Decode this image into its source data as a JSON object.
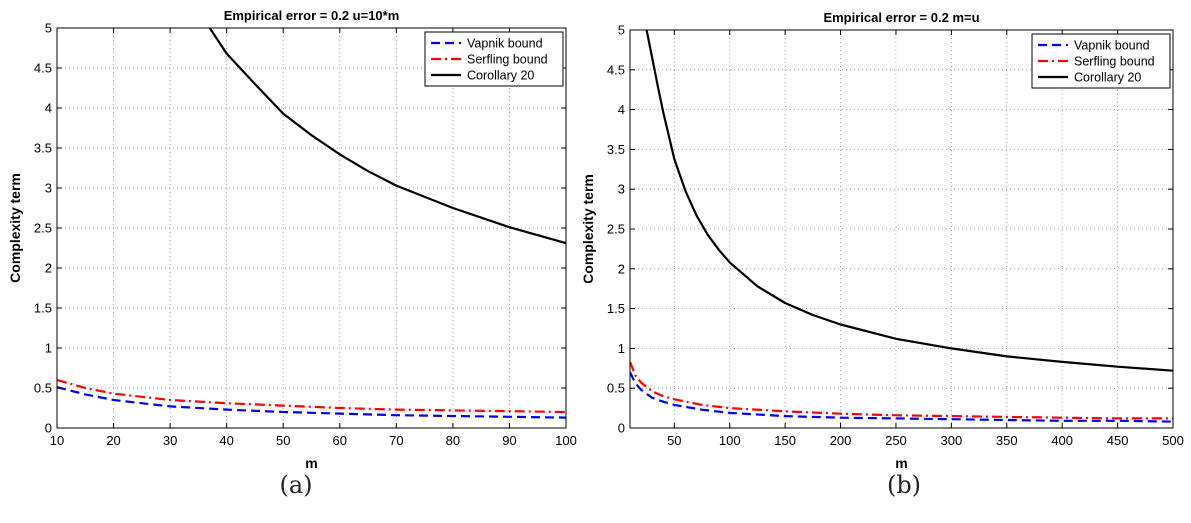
{
  "chart_data": [
    {
      "type": "line",
      "title": "Empirical error = 0.2   u=10*m",
      "xlabel": "m",
      "ylabel": "Complexity term",
      "caption": "(a)",
      "xlim": [
        10,
        100
      ],
      "ylim": [
        0,
        5
      ],
      "xticks": [
        10,
        20,
        30,
        40,
        50,
        60,
        70,
        80,
        90,
        100
      ],
      "xtick_labels": [
        "10",
        "20",
        "30",
        "40",
        "50",
        "60",
        "70",
        "80",
        "90",
        "100"
      ],
      "yticks": [
        0,
        0.5,
        1,
        1.5,
        2,
        2.5,
        3,
        3.5,
        4,
        4.5,
        5
      ],
      "ytick_labels": [
        "0",
        "0.5",
        "1",
        "1.5",
        "2",
        "2.5",
        "3",
        "3.5",
        "4",
        "4.5",
        "5"
      ],
      "grid": true,
      "legend_position": "top-right",
      "series": [
        {
          "name": "Vapnik bound",
          "color": "#0000ff",
          "dash": "dashed",
          "x": [
            10,
            15,
            20,
            25,
            30,
            40,
            50,
            60,
            70,
            80,
            90,
            100
          ],
          "y": [
            0.51,
            0.42,
            0.35,
            0.31,
            0.27,
            0.23,
            0.2,
            0.18,
            0.16,
            0.15,
            0.14,
            0.13
          ]
        },
        {
          "name": "Serfling bound",
          "color": "#ff0000",
          "dash": "dashdot",
          "x": [
            10,
            15,
            20,
            25,
            30,
            40,
            50,
            60,
            70,
            80,
            90,
            100
          ],
          "y": [
            0.6,
            0.5,
            0.43,
            0.39,
            0.35,
            0.31,
            0.28,
            0.25,
            0.23,
            0.22,
            0.21,
            0.2
          ]
        },
        {
          "name": "Corollary 20",
          "color": "#000000",
          "dash": "solid",
          "x": [
            36,
            37,
            40,
            45,
            50,
            55,
            60,
            65,
            70,
            80,
            90,
            100
          ],
          "y": [
            5.2,
            5.0,
            4.68,
            4.3,
            3.93,
            3.66,
            3.42,
            3.21,
            3.03,
            2.75,
            2.51,
            2.31
          ]
        }
      ]
    },
    {
      "type": "line",
      "title": "Empirical error = 0.2   m=u",
      "xlabel": "m",
      "ylabel": "Complexity term",
      "caption": "(b)",
      "xlim": [
        10,
        500
      ],
      "ylim": [
        0,
        5
      ],
      "xticks": [
        50,
        100,
        150,
        200,
        250,
        300,
        350,
        400,
        450,
        500
      ],
      "xtick_labels": [
        "50",
        "100",
        "150",
        "200",
        "250",
        "300",
        "350",
        "400",
        "450",
        "500"
      ],
      "yticks": [
        0,
        0.5,
        1,
        1.5,
        2,
        2.5,
        3,
        3.5,
        4,
        4.5,
        5
      ],
      "ytick_labels": [
        "0",
        "0.5",
        "1",
        "1.5",
        "2",
        "2.5",
        "3",
        "3.5",
        "4",
        "4.5",
        "5"
      ],
      "grid": true,
      "legend_position": "top-right",
      "series": [
        {
          "name": "Vapnik bound",
          "color": "#0000ff",
          "dash": "dashed",
          "x": [
            10,
            15,
            20,
            30,
            40,
            50,
            75,
            100,
            150,
            200,
            250,
            300,
            350,
            400,
            450,
            500
          ],
          "y": [
            0.7,
            0.56,
            0.48,
            0.38,
            0.33,
            0.29,
            0.23,
            0.19,
            0.15,
            0.13,
            0.12,
            0.11,
            0.1,
            0.09,
            0.09,
            0.08
          ]
        },
        {
          "name": "Serfling bound",
          "color": "#ff0000",
          "dash": "dashdot",
          "x": [
            10,
            15,
            20,
            30,
            40,
            50,
            75,
            100,
            150,
            200,
            250,
            300,
            350,
            400,
            450,
            500
          ],
          "y": [
            0.83,
            0.66,
            0.57,
            0.46,
            0.4,
            0.36,
            0.29,
            0.25,
            0.21,
            0.18,
            0.16,
            0.15,
            0.14,
            0.13,
            0.12,
            0.12
          ]
        },
        {
          "name": "Corollary 20",
          "color": "#000000",
          "dash": "solid",
          "x": [
            25,
            30,
            35,
            40,
            50,
            60,
            70,
            80,
            90,
            100,
            125,
            150,
            175,
            200,
            250,
            300,
            350,
            400,
            450,
            500
          ],
          "y": [
            5.0,
            4.65,
            4.3,
            3.97,
            3.38,
            2.98,
            2.67,
            2.43,
            2.24,
            2.08,
            1.78,
            1.57,
            1.42,
            1.3,
            1.12,
            1.0,
            0.9,
            0.83,
            0.77,
            0.72
          ]
        }
      ]
    }
  ]
}
